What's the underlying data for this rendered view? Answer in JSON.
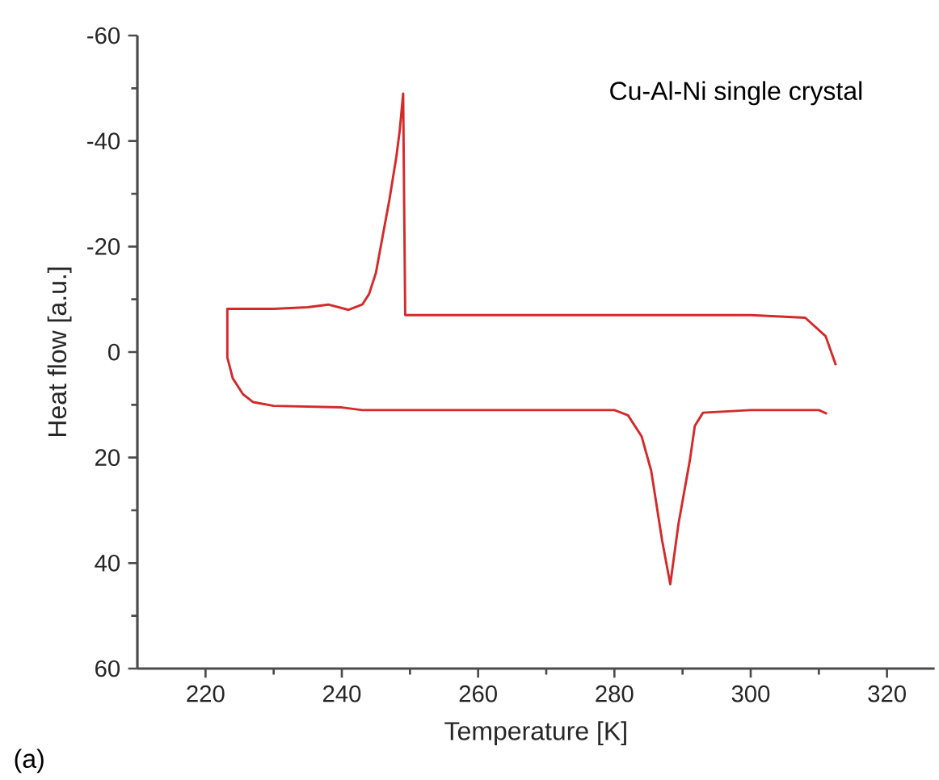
{
  "chart_data": {
    "type": "line",
    "xlabel": "Temperature [K]",
    "ylabel": "Heat flow [a.u.]",
    "annotations": [
      "Cu-Al-Ni single crystal",
      "(a)"
    ],
    "xlim": [
      210,
      327
    ],
    "ylim": [
      60,
      -60
    ],
    "xticks": [
      220,
      240,
      260,
      280,
      300,
      320
    ],
    "yticks": [
      -60,
      -40,
      -20,
      0,
      20,
      40,
      60
    ],
    "grid": false,
    "legend": false,
    "marker": "none",
    "line_style": "solid",
    "series": [
      {
        "color": "#d42a2a",
        "x": [
          312.5,
          311,
          308,
          300,
          270,
          249.3,
          249,
          248.5,
          248,
          247,
          246,
          245,
          244,
          243,
          241,
          238,
          235,
          230,
          223.2,
          223.2,
          224,
          225.5,
          227,
          230,
          240,
          243,
          280,
          282,
          284,
          285.4,
          287,
          288.2,
          289.4,
          291.1,
          291.8,
          293,
          300,
          310,
          311.2
        ],
        "values": [
          2.5,
          -3,
          -6.5,
          -7,
          -7,
          -7,
          -49,
          -42,
          -37,
          -29,
          -22,
          -15,
          -11,
          -9,
          -8,
          -9,
          -8.5,
          -8.2,
          -8.2,
          1,
          5,
          8,
          9.5,
          10.2,
          10.5,
          11,
          11,
          12,
          16,
          22.5,
          35.7,
          44,
          32.6,
          20.3,
          14,
          11.5,
          11,
          11,
          11.7
        ]
      }
    ]
  }
}
